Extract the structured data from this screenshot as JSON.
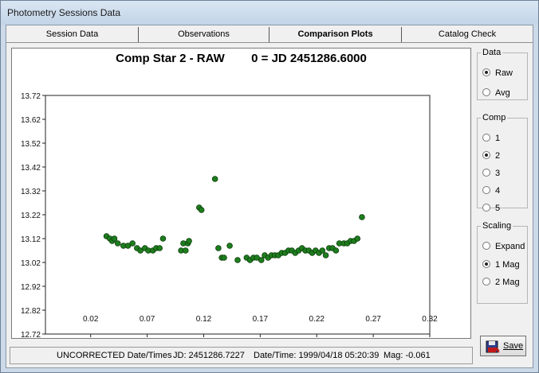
{
  "window": {
    "title": "Photometry Sessions Data"
  },
  "tabs": [
    {
      "label": "Session Data",
      "active": false
    },
    {
      "label": "Observations",
      "active": false
    },
    {
      "label": "Comparison Plots",
      "active": true
    },
    {
      "label": "Catalog Check",
      "active": false
    }
  ],
  "plot": {
    "title": "Comp Star 2 - RAW        0 = JD 2451286.6000"
  },
  "chart_data": {
    "type": "scatter",
    "title": "Comp Star 2 - RAW        0 = JD 2451286.6000",
    "xlabel": "",
    "ylabel": "",
    "xlim": [
      -0.02,
      0.32
    ],
    "ylim": [
      13.72,
      12.72
    ],
    "y_inverted": true,
    "grid": false,
    "marker_color": "#1e7d1e",
    "x_ticks": [
      "0.02",
      "0.07",
      "0.12",
      "0.17",
      "0.22",
      "0.27",
      "0.32"
    ],
    "y_ticks": [
      "12.72",
      "12.82",
      "12.92",
      "13.02",
      "13.12",
      "13.22",
      "13.32",
      "13.42",
      "13.52",
      "13.62",
      "13.72"
    ],
    "series": [
      {
        "x": [
          0.034,
          0.037,
          0.039,
          0.041,
          0.044,
          0.049,
          0.053,
          0.057,
          0.061,
          0.064,
          0.068,
          0.071,
          0.075,
          0.078,
          0.081,
          0.084,
          0.1,
          0.102,
          0.104,
          0.106,
          0.107,
          0.116,
          0.118,
          0.13,
          0.133,
          0.136,
          0.138,
          0.143,
          0.15,
          0.158,
          0.161,
          0.164,
          0.167,
          0.171,
          0.174,
          0.177,
          0.18,
          0.183,
          0.186,
          0.189,
          0.192,
          0.195,
          0.198,
          0.201,
          0.204,
          0.207,
          0.21,
          0.213,
          0.216,
          0.219,
          0.222,
          0.225,
          0.228,
          0.231,
          0.234,
          0.237,
          0.24,
          0.244,
          0.247,
          0.25,
          0.253,
          0.256,
          0.26
        ],
        "y": [
          13.13,
          13.12,
          13.11,
          13.12,
          13.1,
          13.09,
          13.09,
          13.1,
          13.08,
          13.07,
          13.08,
          13.07,
          13.07,
          13.08,
          13.08,
          13.12,
          13.07,
          13.1,
          13.07,
          13.1,
          13.11,
          13.25,
          13.24,
          13.37,
          13.08,
          13.04,
          13.04,
          13.09,
          13.03,
          13.04,
          13.03,
          13.04,
          13.04,
          13.03,
          13.05,
          13.04,
          13.05,
          13.05,
          13.05,
          13.06,
          13.06,
          13.07,
          13.07,
          13.06,
          13.07,
          13.08,
          13.07,
          13.07,
          13.06,
          13.07,
          13.06,
          13.07,
          13.05,
          13.08,
          13.08,
          13.07,
          13.1,
          13.1,
          13.1,
          13.11,
          13.11,
          13.12,
          13.21
        ]
      }
    ]
  },
  "sidebar": {
    "data_group": {
      "label": "Data",
      "options": [
        {
          "label": "Raw",
          "checked": true
        },
        {
          "label": "Avg",
          "checked": false
        }
      ]
    },
    "comp_group": {
      "label": "Comp",
      "options": [
        {
          "label": "1",
          "checked": false
        },
        {
          "label": "2",
          "checked": true
        },
        {
          "label": "3",
          "checked": false
        },
        {
          "label": "4",
          "checked": false
        },
        {
          "label": "5",
          "checked": false
        }
      ]
    },
    "scaling_group": {
      "label": "Scaling",
      "options": [
        {
          "label": "Expand",
          "checked": false
        },
        {
          "label": "1 Mag",
          "checked": true
        },
        {
          "label": "2 Mag",
          "checked": false
        }
      ]
    },
    "save_label": "Save",
    "save_icon": "floppy-disk-icon"
  },
  "status": {
    "corrected": "UNCORRECTED Date/Times",
    "jd": "JD: 2451286.7227",
    "datetime": "Date/Time: 1999/04/18 05:20:39",
    "mag": "Mag: -0.061"
  }
}
